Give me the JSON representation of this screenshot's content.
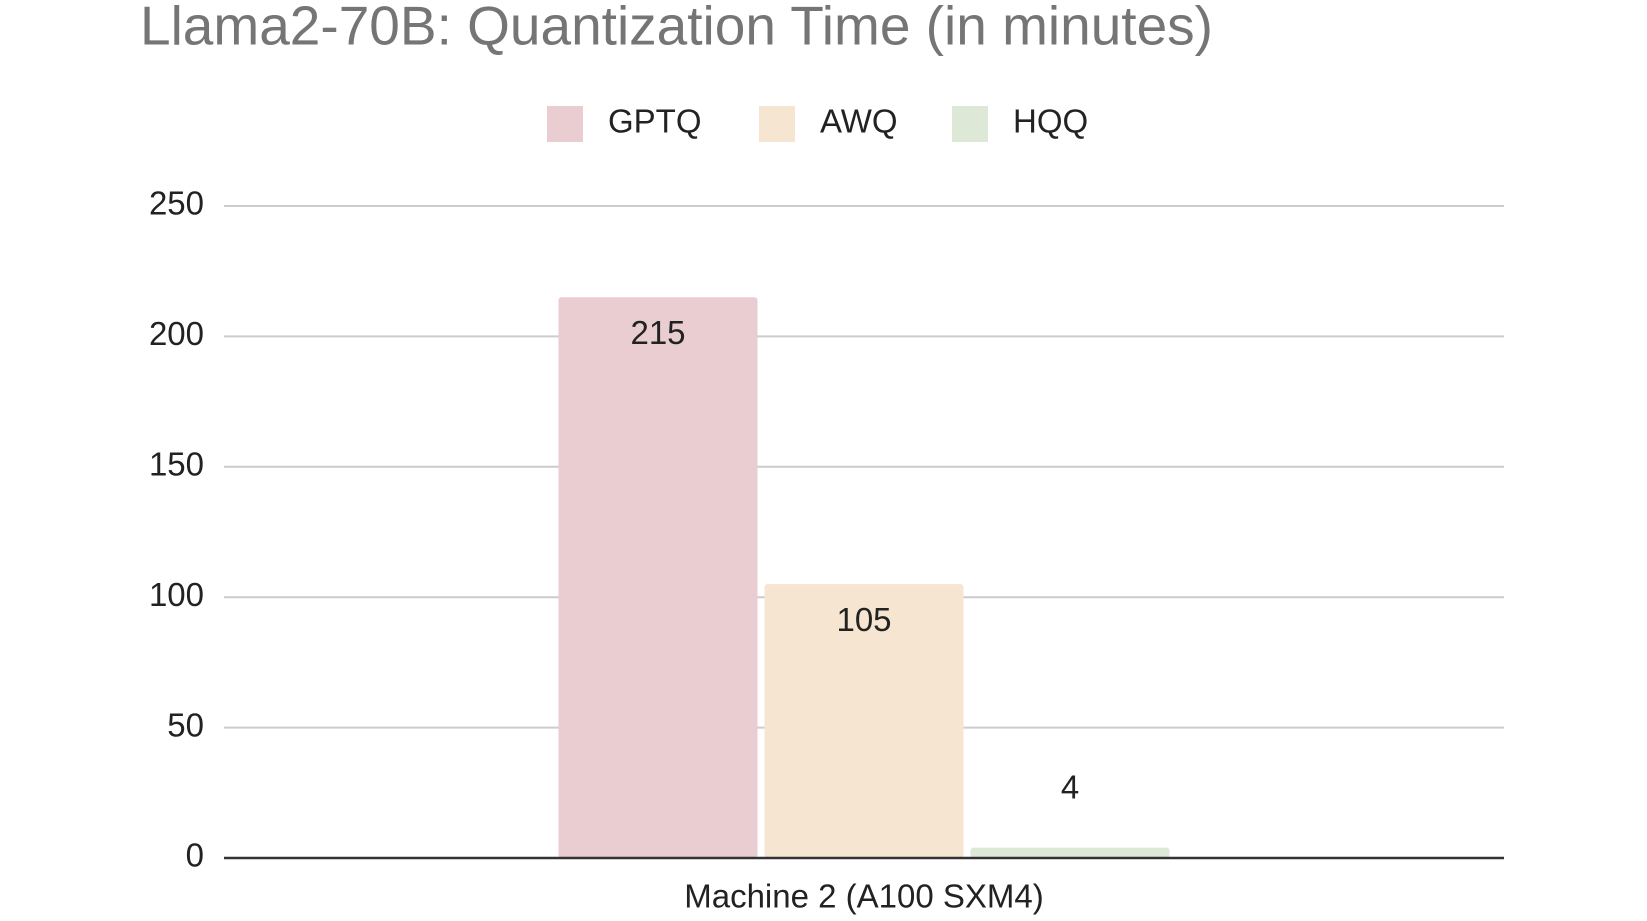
{
  "chart_data": {
    "type": "bar",
    "title": "Llama2-70B: Quantization Time (in minutes)",
    "categories": [
      "Machine 2 (A100 SXM4)"
    ],
    "series": [
      {
        "name": "GPTQ",
        "color": "#e9cdd0",
        "values": [
          215
        ]
      },
      {
        "name": "AWQ",
        "color": "#f6e5d0",
        "values": [
          105
        ]
      },
      {
        "name": "HQQ",
        "color": "#dde9d6",
        "values": [
          4
        ]
      }
    ],
    "ylim": [
      0,
      250
    ],
    "yticks": [
      0,
      50,
      100,
      150,
      200,
      250
    ],
    "grid": true,
    "legend": "top"
  }
}
